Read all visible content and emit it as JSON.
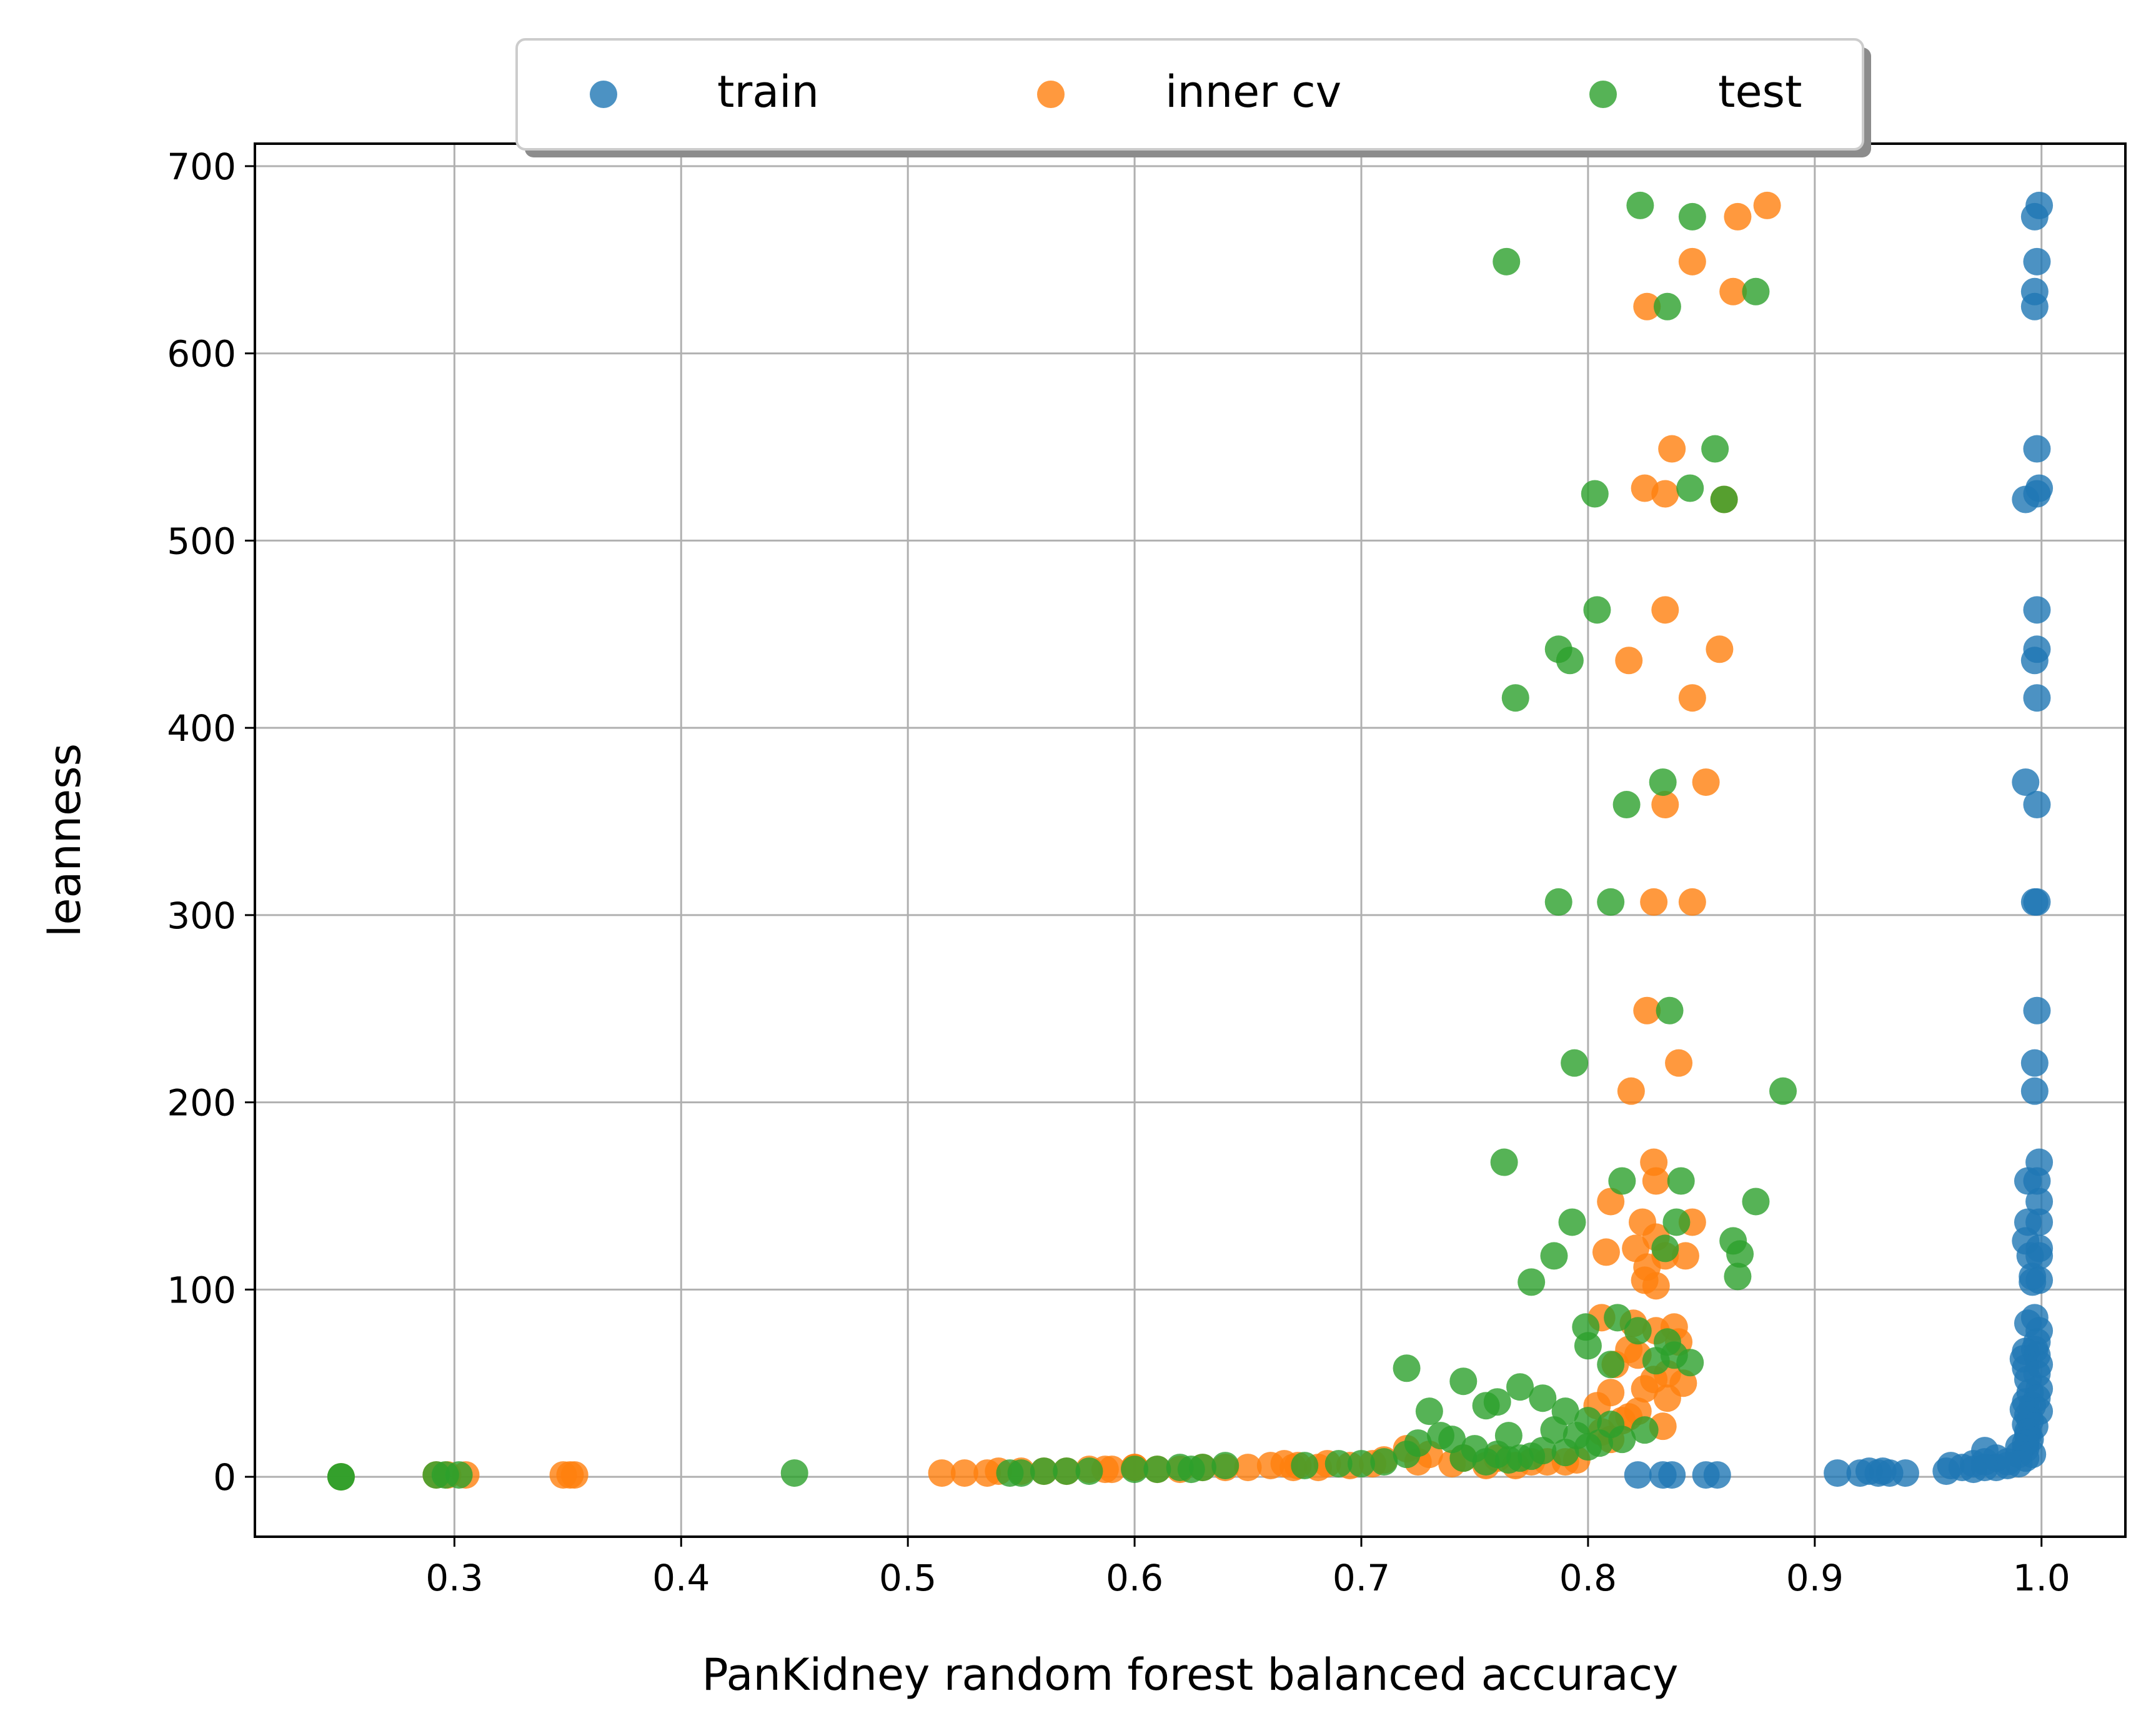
{
  "chart_data": {
    "type": "scatter",
    "title": "",
    "xlabel": "PanKidney random forest balanced accuracy",
    "ylabel": "leanness",
    "xlim": [
      0.212,
      1.037
    ],
    "ylim": [
      -32,
      712
    ],
    "xticks": [
      0.3,
      0.4,
      0.5,
      0.6,
      0.7,
      0.8,
      0.9,
      1.0
    ],
    "xtick_labels": [
      "0.3",
      "0.4",
      "0.5",
      "0.6",
      "0.7",
      "0.8",
      "0.9",
      "1.0"
    ],
    "yticks": [
      0,
      100,
      200,
      300,
      400,
      500,
      600,
      700
    ],
    "ytick_labels": [
      "0",
      "100",
      "200",
      "300",
      "400",
      "500",
      "600",
      "700"
    ],
    "grid": true,
    "legend": {
      "placement": "top-center, outside plot",
      "columns": 3,
      "shadow": true
    },
    "series": [
      {
        "name": "train",
        "color": "#1f77b4",
        "x": [
          0.999,
          0.997,
          0.998,
          0.997,
          0.997,
          0.998,
          0.993,
          0.999,
          0.998,
          0.998,
          0.998,
          0.997,
          0.998,
          0.993,
          0.998,
          0.997,
          0.998,
          0.998,
          0.997,
          0.997,
          0.999,
          0.998,
          0.994,
          0.999,
          0.994,
          0.999,
          0.993,
          0.999,
          0.995,
          0.999,
          0.996,
          0.999,
          0.996,
          0.997,
          0.994,
          0.999,
          0.998,
          0.997,
          0.993,
          0.998,
          0.992,
          0.999,
          0.993,
          0.998,
          0.994,
          0.999,
          0.995,
          0.998,
          0.993,
          0.996,
          0.992,
          0.999,
          0.994,
          0.995,
          0.993,
          0.997,
          0.994,
          0.994,
          0.995,
          0.993,
          0.99,
          0.993,
          0.996,
          0.993,
          0.975,
          0.98,
          0.99,
          0.975,
          0.97,
          0.985,
          0.98,
          0.99,
          0.96,
          0.965,
          0.97,
          0.975,
          0.958,
          0.985,
          0.91,
          0.92,
          0.924,
          0.928,
          0.93,
          0.933,
          0.94,
          0.822,
          0.833,
          0.837,
          0.852,
          0.857
        ],
        "y": [
          679,
          673,
          649,
          633,
          625,
          549,
          522,
          528,
          525,
          463,
          442,
          436,
          416,
          371,
          359,
          307,
          307,
          249,
          221,
          206,
          168,
          158,
          158,
          147,
          136,
          136,
          126,
          122,
          118,
          118,
          107,
          105,
          104,
          85,
          82,
          78,
          72,
          68,
          67,
          65,
          63,
          60,
          58,
          55,
          52,
          47,
          45,
          42,
          40,
          38,
          36,
          35,
          33,
          30,
          28,
          27,
          24,
          22,
          20,
          18,
          16,
          15,
          12,
          10,
          14,
          10,
          12,
          8,
          7,
          6,
          5,
          7,
          6,
          5,
          4,
          5,
          3,
          8,
          2,
          2,
          3,
          2,
          3,
          2,
          2,
          1,
          1,
          1,
          1,
          1
        ]
      },
      {
        "name": "inner cv",
        "color": "#ff7f0e",
        "x": [
          0.879,
          0.866,
          0.846,
          0.864,
          0.826,
          0.837,
          0.825,
          0.834,
          0.86,
          0.834,
          0.858,
          0.818,
          0.846,
          0.852,
          0.834,
          0.829,
          0.846,
          0.826,
          0.84,
          0.819,
          0.829,
          0.83,
          0.81,
          0.824,
          0.846,
          0.83,
          0.821,
          0.808,
          0.826,
          0.834,
          0.825,
          0.843,
          0.83,
          0.806,
          0.82,
          0.838,
          0.83,
          0.84,
          0.818,
          0.822,
          0.812,
          0.835,
          0.829,
          0.842,
          0.825,
          0.81,
          0.835,
          0.804,
          0.822,
          0.818,
          0.815,
          0.833,
          0.806,
          0.81,
          0.72,
          0.73,
          0.745,
          0.76,
          0.775,
          0.79,
          0.71,
          0.74,
          0.755,
          0.768,
          0.782,
          0.795,
          0.65,
          0.66,
          0.67,
          0.685,
          0.695,
          0.705,
          0.725,
          0.64,
          0.63,
          0.62,
          0.61,
          0.6,
          0.59,
          0.58,
          0.57,
          0.56,
          0.55,
          0.54,
          0.535,
          0.525,
          0.515,
          0.587,
          0.6,
          0.666,
          0.672,
          0.681,
          0.351,
          0.353,
          0.348,
          0.305,
          0.297,
          0.292,
          0.25
        ],
        "y": [
          679,
          673,
          649,
          633,
          625,
          549,
          528,
          525,
          522,
          463,
          442,
          436,
          416,
          371,
          359,
          307,
          307,
          249,
          221,
          206,
          168,
          158,
          147,
          136,
          136,
          128,
          122,
          120,
          112,
          118,
          105,
          118,
          102,
          85,
          82,
          80,
          78,
          72,
          68,
          65,
          60,
          55,
          52,
          50,
          47,
          45,
          42,
          38,
          35,
          32,
          30,
          27,
          24,
          20,
          15,
          12,
          10,
          10,
          8,
          8,
          9,
          7,
          6,
          6,
          8,
          9,
          5,
          6,
          5,
          7,
          6,
          7,
          8,
          5,
          5,
          4,
          4,
          5,
          4,
          4,
          3,
          3,
          3,
          3,
          2,
          2,
          2,
          4,
          5,
          7,
          6,
          5,
          1,
          1,
          1,
          1,
          1,
          1,
          0
        ]
      },
      {
        "name": "test",
        "color": "#2ca02c",
        "x": [
          0.823,
          0.846,
          0.764,
          0.874,
          0.835,
          0.856,
          0.803,
          0.845,
          0.86,
          0.804,
          0.787,
          0.792,
          0.768,
          0.833,
          0.817,
          0.787,
          0.81,
          0.836,
          0.794,
          0.886,
          0.763,
          0.815,
          0.841,
          0.874,
          0.793,
          0.839,
          0.864,
          0.785,
          0.867,
          0.834,
          0.866,
          0.775,
          0.799,
          0.813,
          0.822,
          0.835,
          0.838,
          0.8,
          0.81,
          0.83,
          0.845,
          0.72,
          0.745,
          0.77,
          0.76,
          0.73,
          0.755,
          0.78,
          0.79,
          0.8,
          0.81,
          0.825,
          0.74,
          0.765,
          0.785,
          0.795,
          0.805,
          0.815,
          0.75,
          0.76,
          0.77,
          0.78,
          0.79,
          0.8,
          0.725,
          0.735,
          0.745,
          0.755,
          0.765,
          0.775,
          0.72,
          0.7,
          0.71,
          0.69,
          0.675,
          0.64,
          0.63,
          0.625,
          0.62,
          0.61,
          0.6,
          0.58,
          0.57,
          0.56,
          0.55,
          0.545,
          0.45,
          0.302,
          0.296,
          0.292,
          0.25,
          0.25
        ],
        "y": [
          679,
          673,
          649,
          633,
          625,
          549,
          525,
          528,
          522,
          463,
          442,
          436,
          416,
          371,
          359,
          307,
          307,
          249,
          221,
          206,
          168,
          158,
          158,
          147,
          136,
          136,
          126,
          118,
          119,
          122,
          107,
          104,
          80,
          85,
          78,
          72,
          65,
          70,
          60,
          62,
          61,
          58,
          51,
          48,
          40,
          35,
          38,
          42,
          35,
          30,
          28,
          25,
          20,
          22,
          25,
          22,
          18,
          20,
          15,
          12,
          10,
          14,
          13,
          16,
          18,
          22,
          10,
          8,
          9,
          11,
          12,
          7,
          8,
          7,
          6,
          6,
          5,
          4,
          5,
          4,
          4,
          3,
          3,
          3,
          2,
          2,
          2,
          1,
          1,
          1,
          0,
          0
        ]
      }
    ]
  }
}
